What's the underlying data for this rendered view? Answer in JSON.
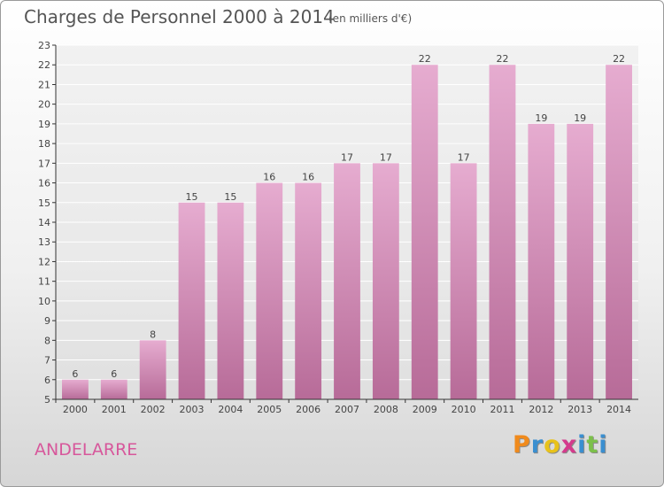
{
  "header": {
    "title": "Charges de Personnel 2000 à 2014",
    "subtitle": "(en milliers d'€)"
  },
  "footer": {
    "town": "ANDELARRE",
    "logo_letters": [
      "P",
      "r",
      "o",
      "x",
      "i",
      "t",
      "i"
    ],
    "logo_colors": [
      "#f08a1c",
      "#3a8fd0",
      "#e8c21a",
      "#d43a8c",
      "#3a8fd0",
      "#7cc04a",
      "#3a8fd0"
    ]
  },
  "colors": {
    "bar": "#cf7fae",
    "bar_highlight": "#e6acd0",
    "grid": "#ffffff",
    "axis": "#333333"
  },
  "chart_data": {
    "type": "bar",
    "title": "Charges de Personnel 2000 à 2014",
    "subtitle": "(en milliers d'€)",
    "categories": [
      "2000",
      "2001",
      "2002",
      "2003",
      "2004",
      "2005",
      "2006",
      "2007",
      "2008",
      "2009",
      "2010",
      "2011",
      "2012",
      "2013",
      "2014"
    ],
    "values": [
      6,
      6,
      8,
      15,
      15,
      16,
      16,
      17,
      17,
      22,
      17,
      22,
      19,
      19,
      22
    ],
    "data_labels": [
      "6",
      "6",
      "8",
      "15",
      "15",
      "16",
      "16",
      "17",
      "17",
      "22",
      "17",
      "22",
      "19",
      "19",
      "22"
    ],
    "ylim": [
      5,
      23
    ],
    "yticks": [
      5,
      6,
      7,
      8,
      9,
      10,
      11,
      12,
      13,
      14,
      15,
      16,
      17,
      18,
      19,
      20,
      21,
      22,
      23
    ],
    "xlabel": "",
    "ylabel": "",
    "grid": true
  }
}
